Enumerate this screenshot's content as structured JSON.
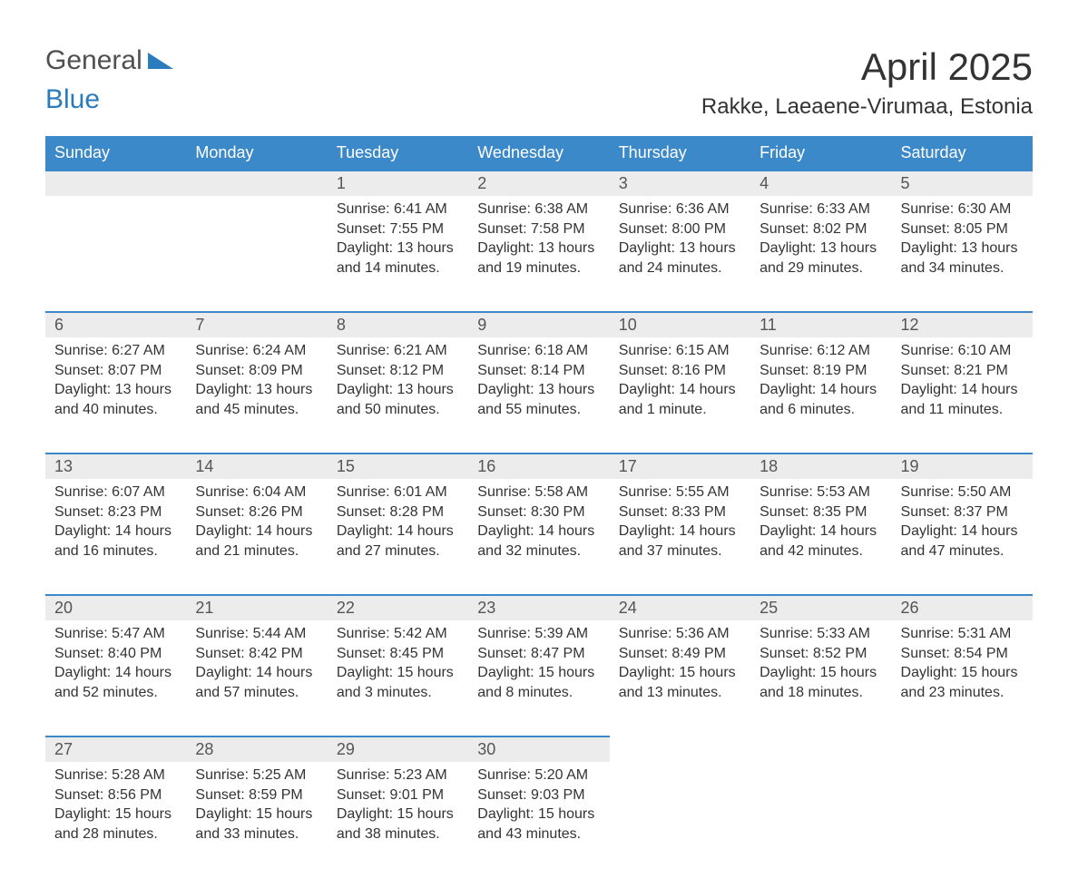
{
  "brand": {
    "part1": "General",
    "part2": "Blue"
  },
  "title": "April 2025",
  "location": "Rakke, Laeaene-Virumaa, Estonia",
  "colors": {
    "header_bg": "#3b89c9",
    "header_text": "#ffffff",
    "daynum_bg": "#ececec",
    "row_border": "#3b89c9",
    "body_text": "#333333",
    "brand_gray": "#505050",
    "brand_blue": "#2b7bbf"
  },
  "fonts": {
    "title_size_pt": 32,
    "location_size_pt": 18,
    "header_size_pt": 14,
    "cell_size_pt": 12
  },
  "weekdays": [
    "Sunday",
    "Monday",
    "Tuesday",
    "Wednesday",
    "Thursday",
    "Friday",
    "Saturday"
  ],
  "weeks": [
    [
      null,
      null,
      {
        "day": "1",
        "sunrise": "Sunrise: 6:41 AM",
        "sunset": "Sunset: 7:55 PM",
        "daylight1": "Daylight: 13 hours",
        "daylight2": "and 14 minutes."
      },
      {
        "day": "2",
        "sunrise": "Sunrise: 6:38 AM",
        "sunset": "Sunset: 7:58 PM",
        "daylight1": "Daylight: 13 hours",
        "daylight2": "and 19 minutes."
      },
      {
        "day": "3",
        "sunrise": "Sunrise: 6:36 AM",
        "sunset": "Sunset: 8:00 PM",
        "daylight1": "Daylight: 13 hours",
        "daylight2": "and 24 minutes."
      },
      {
        "day": "4",
        "sunrise": "Sunrise: 6:33 AM",
        "sunset": "Sunset: 8:02 PM",
        "daylight1": "Daylight: 13 hours",
        "daylight2": "and 29 minutes."
      },
      {
        "day": "5",
        "sunrise": "Sunrise: 6:30 AM",
        "sunset": "Sunset: 8:05 PM",
        "daylight1": "Daylight: 13 hours",
        "daylight2": "and 34 minutes."
      }
    ],
    [
      {
        "day": "6",
        "sunrise": "Sunrise: 6:27 AM",
        "sunset": "Sunset: 8:07 PM",
        "daylight1": "Daylight: 13 hours",
        "daylight2": "and 40 minutes."
      },
      {
        "day": "7",
        "sunrise": "Sunrise: 6:24 AM",
        "sunset": "Sunset: 8:09 PM",
        "daylight1": "Daylight: 13 hours",
        "daylight2": "and 45 minutes."
      },
      {
        "day": "8",
        "sunrise": "Sunrise: 6:21 AM",
        "sunset": "Sunset: 8:12 PM",
        "daylight1": "Daylight: 13 hours",
        "daylight2": "and 50 minutes."
      },
      {
        "day": "9",
        "sunrise": "Sunrise: 6:18 AM",
        "sunset": "Sunset: 8:14 PM",
        "daylight1": "Daylight: 13 hours",
        "daylight2": "and 55 minutes."
      },
      {
        "day": "10",
        "sunrise": "Sunrise: 6:15 AM",
        "sunset": "Sunset: 8:16 PM",
        "daylight1": "Daylight: 14 hours",
        "daylight2": "and 1 minute."
      },
      {
        "day": "11",
        "sunrise": "Sunrise: 6:12 AM",
        "sunset": "Sunset: 8:19 PM",
        "daylight1": "Daylight: 14 hours",
        "daylight2": "and 6 minutes."
      },
      {
        "day": "12",
        "sunrise": "Sunrise: 6:10 AM",
        "sunset": "Sunset: 8:21 PM",
        "daylight1": "Daylight: 14 hours",
        "daylight2": "and 11 minutes."
      }
    ],
    [
      {
        "day": "13",
        "sunrise": "Sunrise: 6:07 AM",
        "sunset": "Sunset: 8:23 PM",
        "daylight1": "Daylight: 14 hours",
        "daylight2": "and 16 minutes."
      },
      {
        "day": "14",
        "sunrise": "Sunrise: 6:04 AM",
        "sunset": "Sunset: 8:26 PM",
        "daylight1": "Daylight: 14 hours",
        "daylight2": "and 21 minutes."
      },
      {
        "day": "15",
        "sunrise": "Sunrise: 6:01 AM",
        "sunset": "Sunset: 8:28 PM",
        "daylight1": "Daylight: 14 hours",
        "daylight2": "and 27 minutes."
      },
      {
        "day": "16",
        "sunrise": "Sunrise: 5:58 AM",
        "sunset": "Sunset: 8:30 PM",
        "daylight1": "Daylight: 14 hours",
        "daylight2": "and 32 minutes."
      },
      {
        "day": "17",
        "sunrise": "Sunrise: 5:55 AM",
        "sunset": "Sunset: 8:33 PM",
        "daylight1": "Daylight: 14 hours",
        "daylight2": "and 37 minutes."
      },
      {
        "day": "18",
        "sunrise": "Sunrise: 5:53 AM",
        "sunset": "Sunset: 8:35 PM",
        "daylight1": "Daylight: 14 hours",
        "daylight2": "and 42 minutes."
      },
      {
        "day": "19",
        "sunrise": "Sunrise: 5:50 AM",
        "sunset": "Sunset: 8:37 PM",
        "daylight1": "Daylight: 14 hours",
        "daylight2": "and 47 minutes."
      }
    ],
    [
      {
        "day": "20",
        "sunrise": "Sunrise: 5:47 AM",
        "sunset": "Sunset: 8:40 PM",
        "daylight1": "Daylight: 14 hours",
        "daylight2": "and 52 minutes."
      },
      {
        "day": "21",
        "sunrise": "Sunrise: 5:44 AM",
        "sunset": "Sunset: 8:42 PM",
        "daylight1": "Daylight: 14 hours",
        "daylight2": "and 57 minutes."
      },
      {
        "day": "22",
        "sunrise": "Sunrise: 5:42 AM",
        "sunset": "Sunset: 8:45 PM",
        "daylight1": "Daylight: 15 hours",
        "daylight2": "and 3 minutes."
      },
      {
        "day": "23",
        "sunrise": "Sunrise: 5:39 AM",
        "sunset": "Sunset: 8:47 PM",
        "daylight1": "Daylight: 15 hours",
        "daylight2": "and 8 minutes."
      },
      {
        "day": "24",
        "sunrise": "Sunrise: 5:36 AM",
        "sunset": "Sunset: 8:49 PM",
        "daylight1": "Daylight: 15 hours",
        "daylight2": "and 13 minutes."
      },
      {
        "day": "25",
        "sunrise": "Sunrise: 5:33 AM",
        "sunset": "Sunset: 8:52 PM",
        "daylight1": "Daylight: 15 hours",
        "daylight2": "and 18 minutes."
      },
      {
        "day": "26",
        "sunrise": "Sunrise: 5:31 AM",
        "sunset": "Sunset: 8:54 PM",
        "daylight1": "Daylight: 15 hours",
        "daylight2": "and 23 minutes."
      }
    ],
    [
      {
        "day": "27",
        "sunrise": "Sunrise: 5:28 AM",
        "sunset": "Sunset: 8:56 PM",
        "daylight1": "Daylight: 15 hours",
        "daylight2": "and 28 minutes."
      },
      {
        "day": "28",
        "sunrise": "Sunrise: 5:25 AM",
        "sunset": "Sunset: 8:59 PM",
        "daylight1": "Daylight: 15 hours",
        "daylight2": "and 33 minutes."
      },
      {
        "day": "29",
        "sunrise": "Sunrise: 5:23 AM",
        "sunset": "Sunset: 9:01 PM",
        "daylight1": "Daylight: 15 hours",
        "daylight2": "and 38 minutes."
      },
      {
        "day": "30",
        "sunrise": "Sunrise: 5:20 AM",
        "sunset": "Sunset: 9:03 PM",
        "daylight1": "Daylight: 15 hours",
        "daylight2": "and 43 minutes."
      },
      null,
      null,
      null
    ]
  ]
}
